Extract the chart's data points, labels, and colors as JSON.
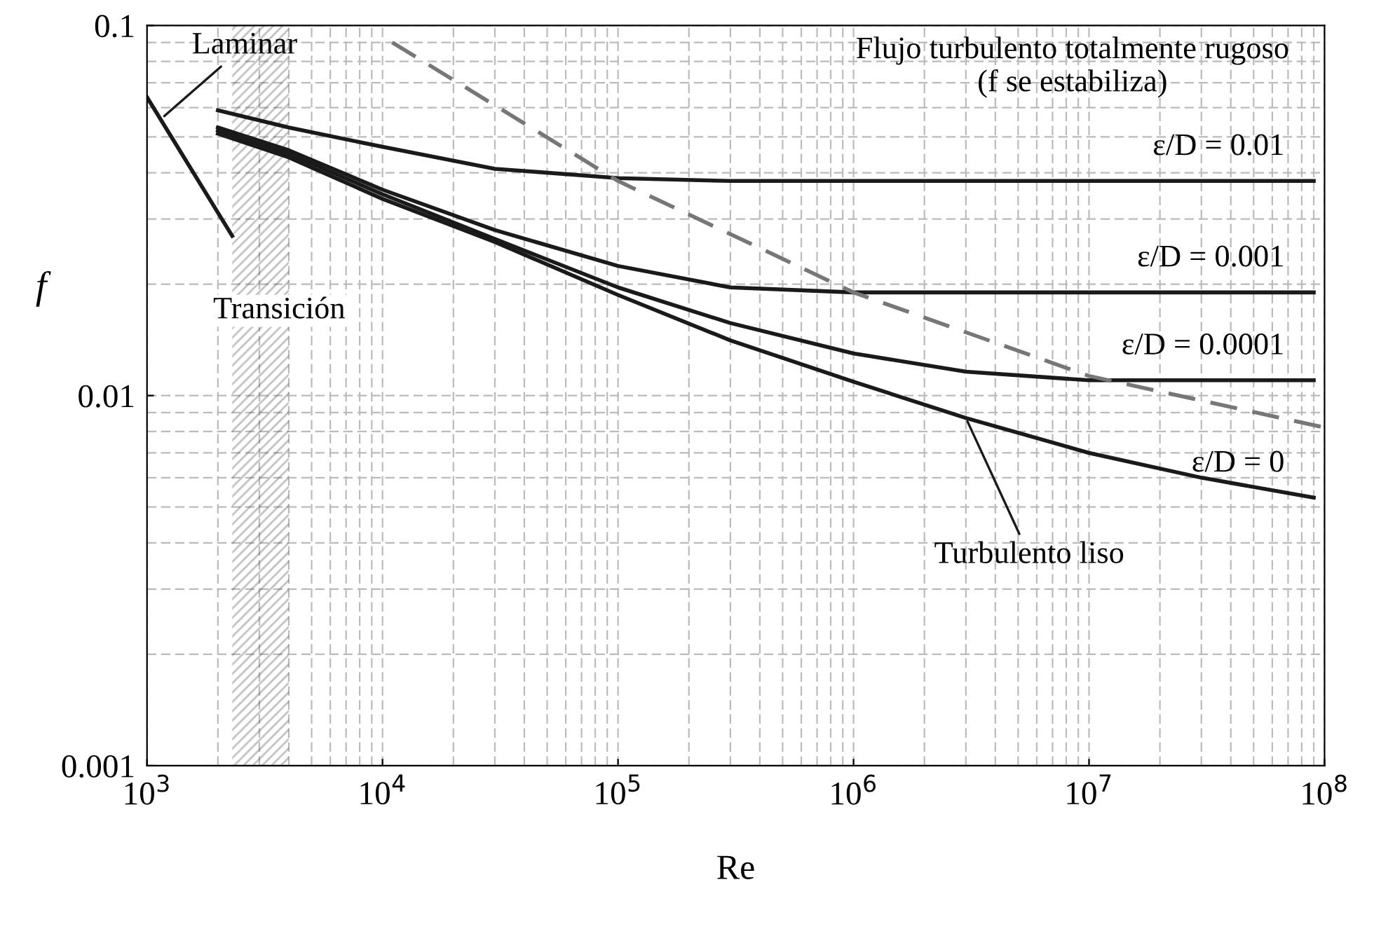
{
  "chart_data": {
    "type": "line",
    "xlabel": "Re",
    "ylabel": "f",
    "log": "xy",
    "grid": true,
    "legend": false,
    "xlim": [
      1000,
      100000000
    ],
    "ylim": [
      0.001,
      0.1
    ],
    "xticks": [
      {
        "value": 1000,
        "label": "10$^{3}$"
      },
      {
        "value": 10000,
        "label": "10$^{4}$"
      },
      {
        "value": 100000,
        "label": "10$^{5}$"
      },
      {
        "value": 1000000,
        "label": "10$^{6}$"
      },
      {
        "value": 10000000,
        "label": "10$^{7}$"
      },
      {
        "value": 100000000,
        "label": "10$^{8}$"
      }
    ],
    "yticks": [
      0.001,
      0.01,
      0.1
    ],
    "series": [
      {
        "color": "#1a1a1a",
        "x": [
          1000,
          2300
        ],
        "values": [
          0.064,
          0.027
        ]
      },
      {
        "name": "ε/D = 0.01",
        "color": "#1a1a1a",
        "x": [
          2000,
          4000,
          10000,
          30000,
          100000,
          300000,
          1000000,
          10000000,
          90000000
        ],
        "values": [
          0.059,
          0.053,
          0.047,
          0.041,
          0.0387,
          0.038,
          0.038,
          0.038,
          0.038
        ]
      },
      {
        "name": "ε/D = 0.001",
        "color": "#1a1a1a",
        "x": [
          2000,
          4000,
          10000,
          30000,
          100000,
          300000,
          1000000,
          10000000,
          90000000
        ],
        "values": [
          0.053,
          0.046,
          0.036,
          0.028,
          0.0224,
          0.0196,
          0.019,
          0.019,
          0.019
        ]
      },
      {
        "name": "ε/D = 0.0001",
        "color": "#1a1a1a",
        "x": [
          2000,
          4000,
          10000,
          30000,
          100000,
          300000,
          1000000,
          3000000,
          10000000,
          90000000
        ],
        "values": [
          0.052,
          0.045,
          0.035,
          0.0265,
          0.0196,
          0.0157,
          0.013,
          0.0116,
          0.011,
          0.011
        ]
      },
      {
        "name": "ε/D = 0",
        "color": "#1a1a1a",
        "x": [
          2000,
          4000,
          10000,
          30000,
          100000,
          300000,
          1000000,
          3000000,
          10000000,
          30000000,
          90000000
        ],
        "values": [
          0.051,
          0.044,
          0.034,
          0.026,
          0.0187,
          0.0141,
          0.0109,
          0.0087,
          0.007,
          0.006,
          0.0053
        ]
      },
      {
        "color": "#777777",
        "line_style": "dashed",
        "x": [
          11000,
          100000,
          1000000,
          10000000,
          100000000
        ],
        "values": [
          0.09,
          0.038,
          0.019,
          0.0113,
          0.0082
        ]
      }
    ],
    "bands": [
      {
        "axis": "x",
        "from": 2300,
        "to": 4000,
        "label": "Transición",
        "color": "#333333"
      }
    ],
    "annotations": [
      {
        "text": "Laminar",
        "x": 1150,
        "y": 0.056
      },
      "Flujo turbulento totalmente rugoso\n(f se estabiliza)",
      {
        "text": "Turbulento liso",
        "x": 3000000,
        "y": 0.0087
      }
    ]
  }
}
